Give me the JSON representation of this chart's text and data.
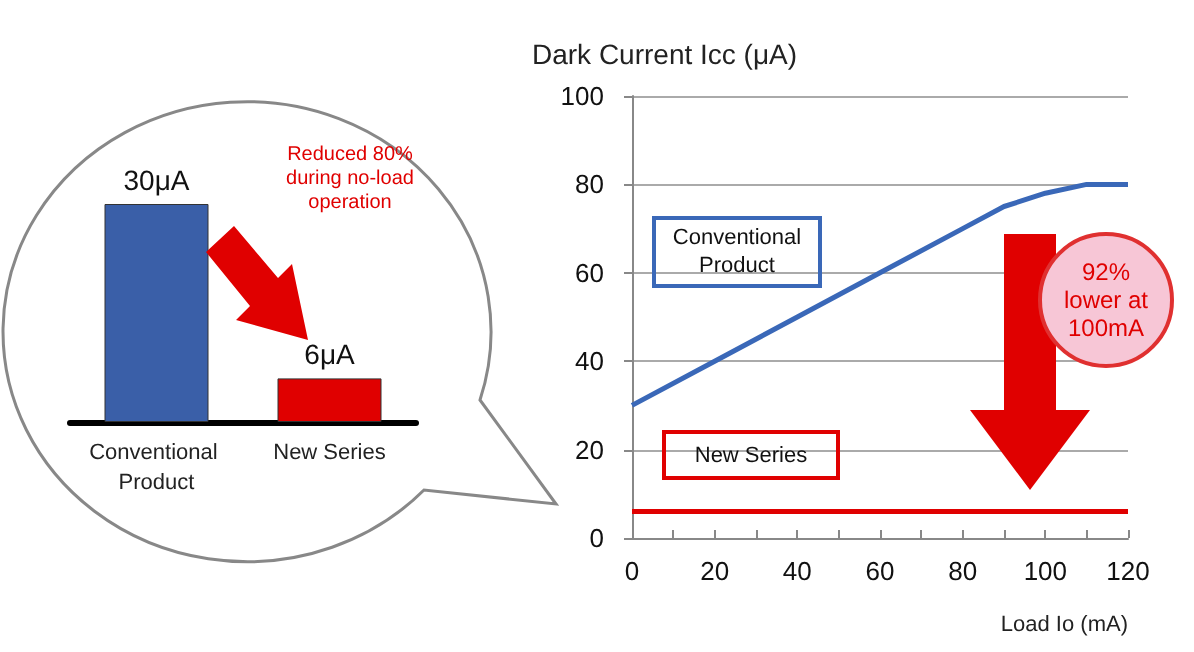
{
  "chart_data": [
    {
      "type": "bar",
      "categories": [
        "Conventional Product",
        "New Series"
      ],
      "values": [
        30,
        6
      ],
      "colors": [
        "#3a5fa8",
        "#e00000"
      ],
      "value_labels": [
        "30μA",
        "6μA"
      ],
      "annotations": [
        "Reduced 80% during no-load operation"
      ]
    },
    {
      "type": "line",
      "ylabel": "Dark Current Icc (μA)",
      "xlabel": "Load Io (mA)",
      "series": [
        {
          "name": "Conventional Product",
          "color": "#3a68b8",
          "x": [
            0,
            20,
            40,
            60,
            80,
            90,
            100,
            110,
            120
          ],
          "values": [
            30,
            40,
            50,
            60,
            70,
            75,
            78,
            80,
            80
          ]
        },
        {
          "name": "New Series",
          "color": "#e00000",
          "x": [
            0,
            120
          ],
          "values": [
            6,
            6
          ]
        }
      ],
      "xlim": [
        0,
        120
      ],
      "ylim": [
        0,
        100
      ],
      "xticks": [
        0,
        {
          "value": 10,
          "label": null
        },
        20,
        {
          "value": 30,
          "label": null
        },
        40,
        {
          "value": 50,
          "label": null
        },
        60,
        {
          "value": 70,
          "label": null
        },
        80,
        {
          "value": 90,
          "label": null
        },
        100,
        {
          "value": 110,
          "label": null
        },
        120
      ],
      "yticks": [
        0,
        20,
        40,
        60,
        80,
        100
      ],
      "grid": "y",
      "marker": "none",
      "annotations": [
        "92% lower at 100mA"
      ]
    }
  ]
}
